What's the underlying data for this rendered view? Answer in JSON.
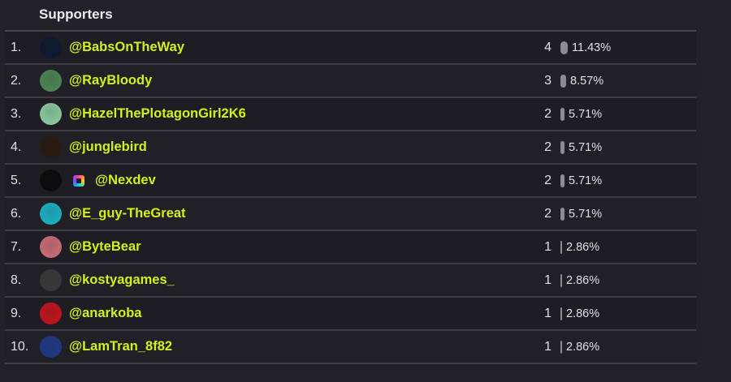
{
  "header": {
    "title": "Supporters"
  },
  "supporters": [
    {
      "rank": "1.",
      "name": "@BabsOnTheWay",
      "count": "4",
      "percent": "11.43%",
      "percent_value": 11.43,
      "avatar_color": "#0d1a33"
    },
    {
      "rank": "2.",
      "name": "@RayBloody",
      "count": "3",
      "percent": "8.57%",
      "percent_value": 8.57,
      "avatar_color": "#4e8a55"
    },
    {
      "rank": "3.",
      "name": "@HazelThePlotagonGirl2K6",
      "count": "2",
      "percent": "5.71%",
      "percent_value": 5.71,
      "avatar_color": "#8fd0a4"
    },
    {
      "rank": "4.",
      "name": "@junglebird",
      "count": "2",
      "percent": "5.71%",
      "percent_value": 5.71,
      "avatar_color": "#2a1a10"
    },
    {
      "rank": "5.",
      "name": "@Nexdev",
      "count": "2",
      "percent": "5.71%",
      "percent_value": 5.71,
      "avatar_color": "#0b0b0b",
      "badge": true
    },
    {
      "rank": "6.",
      "name": "@E_guy-TheGreat",
      "count": "2",
      "percent": "5.71%",
      "percent_value": 5.71,
      "avatar_color": "#1bb7c8"
    },
    {
      "rank": "7.",
      "name": "@ByteBear",
      "count": "1",
      "percent": "2.86%",
      "percent_value": 2.86,
      "avatar_color": "#d0707a"
    },
    {
      "rank": "8.",
      "name": "@kostyagames_",
      "count": "1",
      "percent": "2.86%",
      "percent_value": 2.86,
      "avatar_color": "#3a3a3a"
    },
    {
      "rank": "9.",
      "name": "@anarkoba",
      "count": "1",
      "percent": "2.86%",
      "percent_value": 2.86,
      "avatar_color": "#c8141c"
    },
    {
      "rank": "10.",
      "name": "@LamTran_8f82",
      "count": "1",
      "percent": "2.86%",
      "percent_value": 2.86,
      "avatar_color": "#1f3a8a"
    }
  ]
}
